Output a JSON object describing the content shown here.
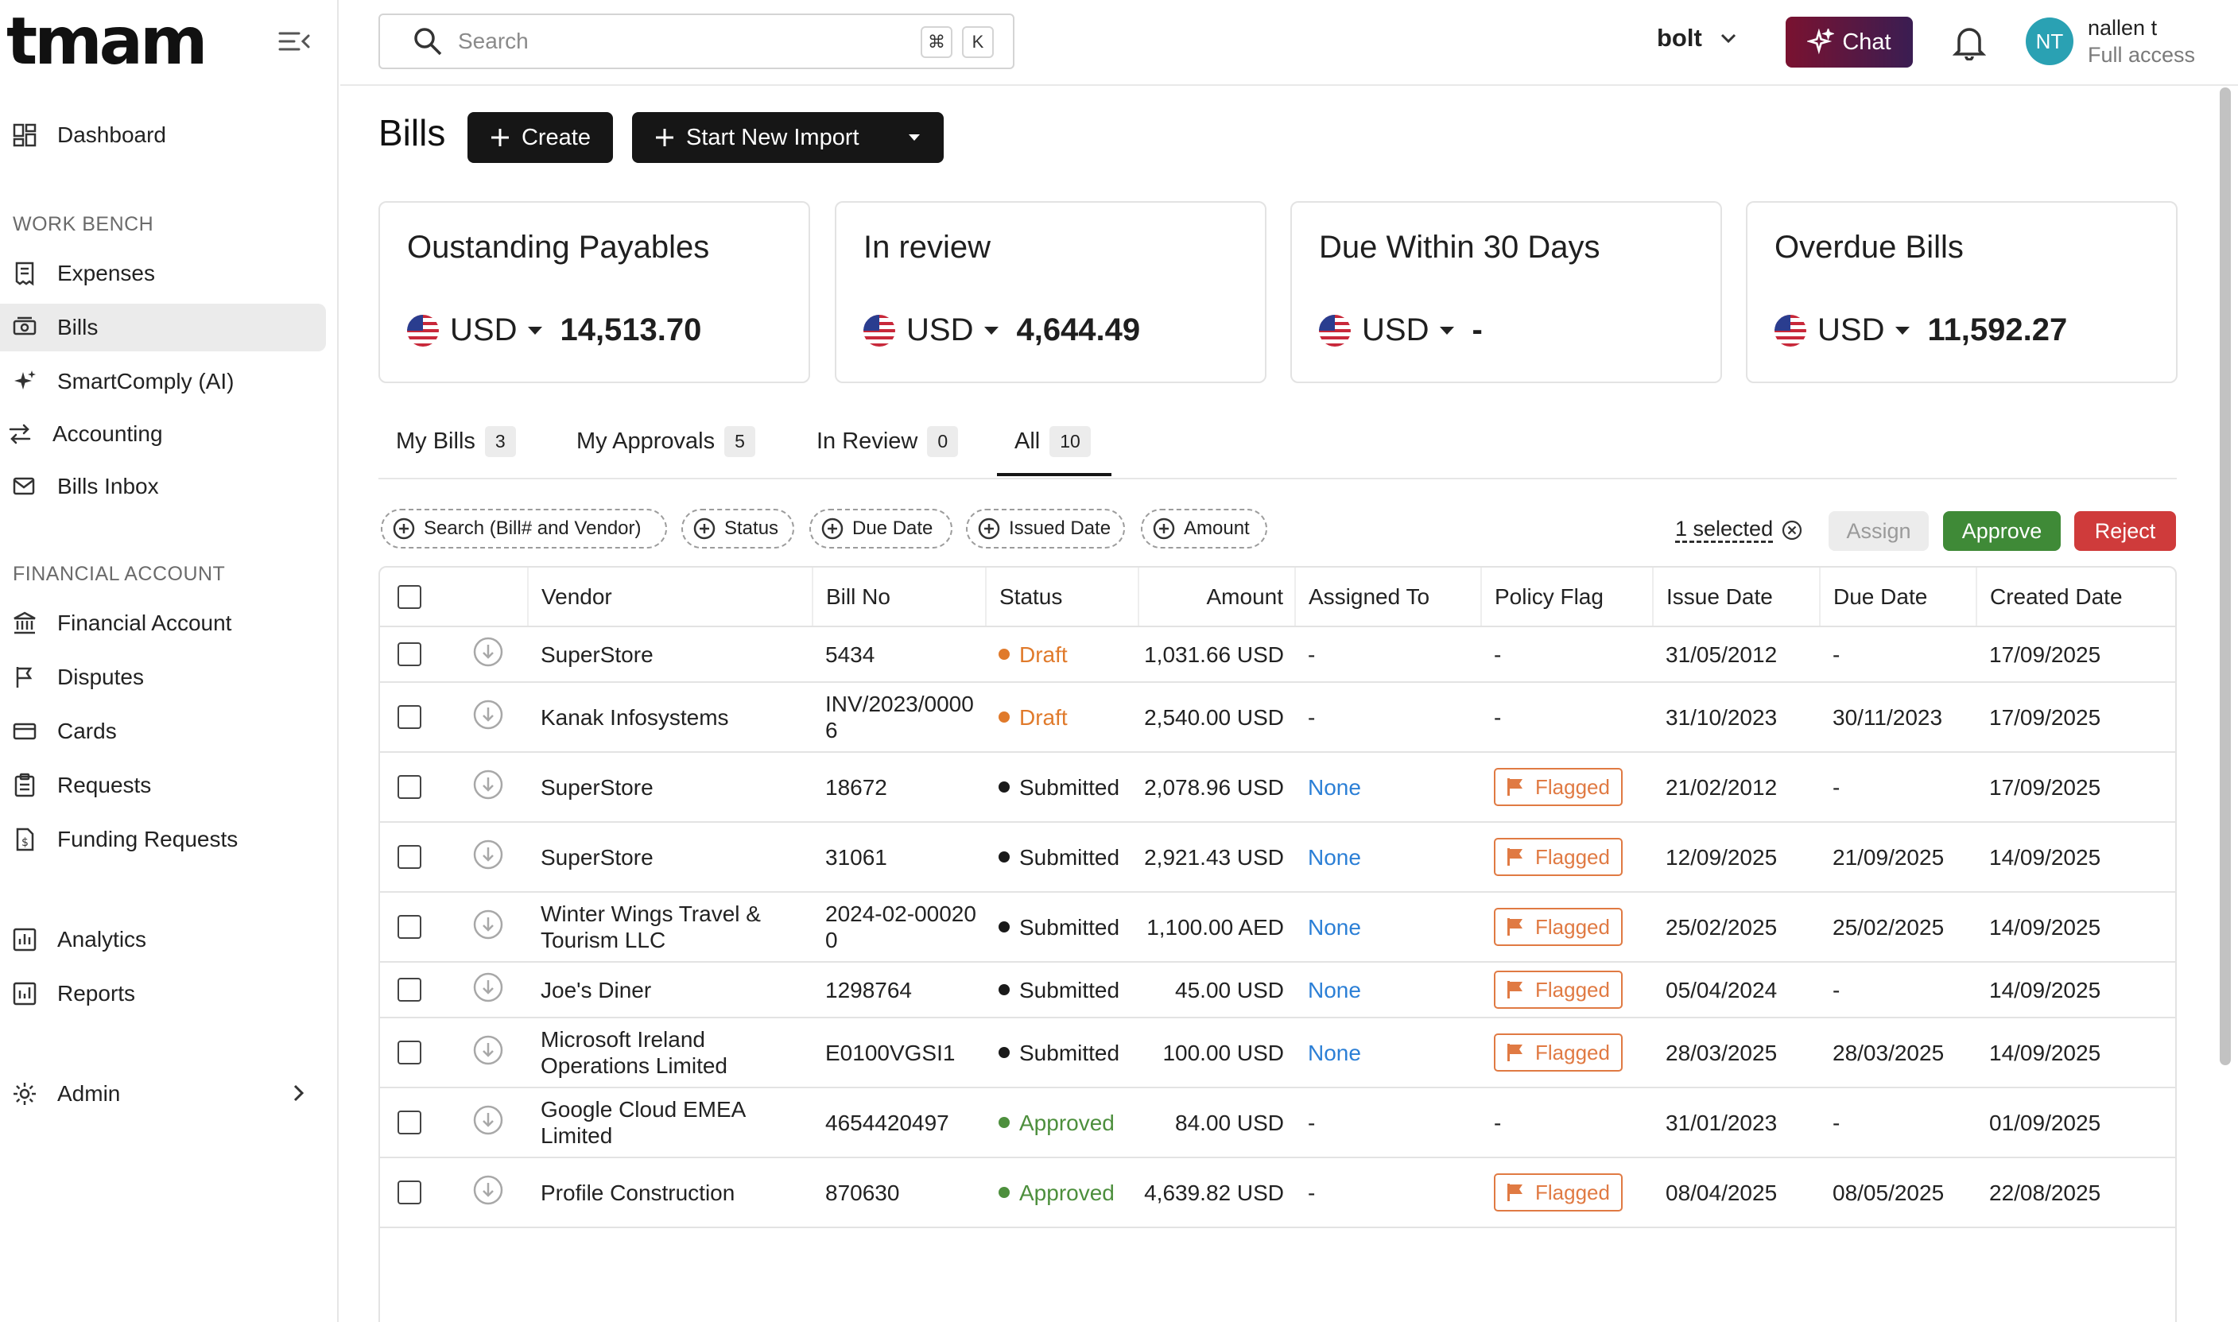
{
  "app": {
    "logo": "tmam"
  },
  "sidebar": {
    "dashboard": "Dashboard",
    "section_workbench": "WORK BENCH",
    "expenses": "Expenses",
    "bills": "Bills",
    "smartcomply": "SmartComply (AI)",
    "accounting": "Accounting",
    "bills_inbox": "Bills Inbox",
    "section_financial": "FINANCIAL ACCOUNT",
    "financial_account": "Financial Account",
    "disputes": "Disputes",
    "cards": "Cards",
    "requests": "Requests",
    "funding_requests": "Funding Requests",
    "analytics": "Analytics",
    "reports": "Reports",
    "admin": "Admin"
  },
  "header": {
    "search_placeholder": "Search",
    "kbd1": "⌘",
    "kbd2": "K",
    "org": "bolt",
    "chat": "Chat",
    "avatar": "NT",
    "user_name": "nallen t",
    "user_role": "Full access"
  },
  "page": {
    "title": "Bills",
    "create": "Create",
    "import": "Start New Import"
  },
  "cards": [
    {
      "title": "Oustanding Payables",
      "currency": "USD",
      "value": "14,513.70"
    },
    {
      "title": "In review",
      "currency": "USD",
      "value": "4,644.49"
    },
    {
      "title": "Due Within 30 Days",
      "currency": "USD",
      "value": "-"
    },
    {
      "title": "Overdue Bills",
      "currency": "USD",
      "value": "11,592.27"
    }
  ],
  "tabs": [
    {
      "label": "My Bills",
      "count": "3"
    },
    {
      "label": "My Approvals",
      "count": "5"
    },
    {
      "label": "In Review",
      "count": "0"
    },
    {
      "label": "All",
      "count": "10"
    }
  ],
  "filters": {
    "search": "Search (Bill# and Vendor)",
    "status": "Status",
    "due_date": "Due Date",
    "issued_date": "Issued Date",
    "amount": "Amount"
  },
  "selection": {
    "text": "1 selected",
    "assign": "Assign",
    "approve": "Approve",
    "reject": "Reject"
  },
  "columns": {
    "vendor": "Vendor",
    "bill_no": "Bill No",
    "status": "Status",
    "amount": "Amount",
    "assigned_to": "Assigned To",
    "policy_flag": "Policy Flag",
    "issue_date": "Issue Date",
    "due_date": "Due Date",
    "created_date": "Created Date"
  },
  "status_colors": {
    "Draft": "#e07a2b",
    "Submitted": "#1a1a1a",
    "Approved": "#4d8f3d"
  },
  "rows": [
    {
      "vendor": "SuperStore",
      "bill_no": "5434",
      "status": "Draft",
      "amount": "1,031.66 USD",
      "assigned_to": "-",
      "policy_flag": "-",
      "issue_date": "31/05/2012",
      "due_date": "-",
      "created_date": "17/09/2025"
    },
    {
      "vendor": "Kanak Infosystems",
      "bill_no": "INV/2023/00006",
      "status": "Draft",
      "amount": "2,540.00 USD",
      "assigned_to": "-",
      "policy_flag": "-",
      "issue_date": "31/10/2023",
      "due_date": "30/11/2023",
      "created_date": "17/09/2025"
    },
    {
      "vendor": "SuperStore",
      "bill_no": "18672",
      "status": "Submitted",
      "amount": "2,078.96 USD",
      "assigned_to": "None",
      "policy_flag": "Flagged",
      "issue_date": "21/02/2012",
      "due_date": "-",
      "created_date": "17/09/2025"
    },
    {
      "vendor": "SuperStore",
      "bill_no": "31061",
      "status": "Submitted",
      "amount": "2,921.43 USD",
      "assigned_to": "None",
      "policy_flag": "Flagged",
      "issue_date": "12/09/2025",
      "due_date": "21/09/2025",
      "created_date": "14/09/2025"
    },
    {
      "vendor": "Winter Wings Travel & Tourism LLC",
      "bill_no": "2024-02-000200",
      "status": "Submitted",
      "amount": "1,100.00 AED",
      "assigned_to": "None",
      "policy_flag": "Flagged",
      "issue_date": "25/02/2025",
      "due_date": "25/02/2025",
      "created_date": "14/09/2025"
    },
    {
      "vendor": "Joe's Diner",
      "bill_no": "1298764",
      "status": "Submitted",
      "amount": "45.00 USD",
      "assigned_to": "None",
      "policy_flag": "Flagged",
      "issue_date": "05/04/2024",
      "due_date": "-",
      "created_date": "14/09/2025"
    },
    {
      "vendor": "Microsoft Ireland Operations Limited",
      "bill_no": "E0100VGSI1",
      "status": "Submitted",
      "amount": "100.00 USD",
      "assigned_to": "None",
      "policy_flag": "Flagged",
      "issue_date": "28/03/2025",
      "due_date": "28/03/2025",
      "created_date": "14/09/2025"
    },
    {
      "vendor": "Google Cloud EMEA Limited",
      "bill_no": "4654420497",
      "status": "Approved",
      "amount": "84.00 USD",
      "assigned_to": "-",
      "policy_flag": "-",
      "issue_date": "31/01/2023",
      "due_date": "-",
      "created_date": "01/09/2025"
    },
    {
      "vendor": "Profile Construction",
      "bill_no": "870630",
      "status": "Approved",
      "amount": "4,639.82 USD",
      "assigned_to": "-",
      "policy_flag": "Flagged",
      "issue_date": "08/04/2025",
      "due_date": "08/05/2025",
      "created_date": "22/08/2025"
    }
  ]
}
